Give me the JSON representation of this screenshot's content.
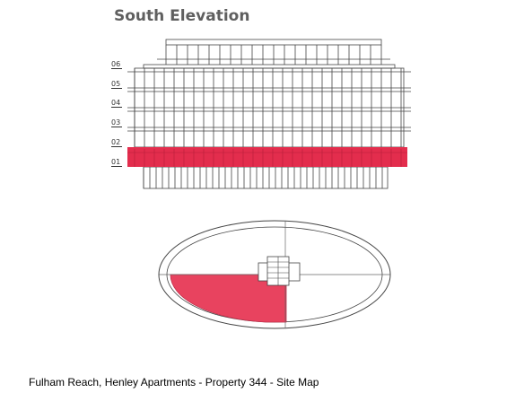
{
  "title": "South Elevation",
  "floor_labels": [
    "06",
    "05",
    "04",
    "03",
    "02",
    "01"
  ],
  "highlighted_floor": "01",
  "caption": "Fulham Reach, Henley Apartments - Property 344 - Site Map",
  "colors": {
    "highlight": "#e8435f",
    "highlight_strong": "#e32d4d",
    "line": "#444444",
    "title": "#5f5f5f"
  }
}
